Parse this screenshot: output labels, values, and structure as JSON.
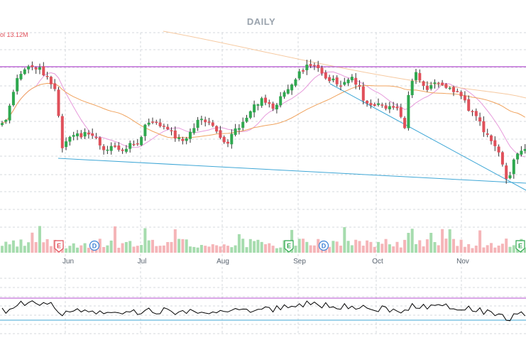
{
  "chart_data": {
    "type": "candlestick",
    "title": "DAILY",
    "volume_label": "ol 13.12M",
    "months": [
      "Jun",
      "Jul",
      "Aug",
      "Sep",
      "Oct",
      "Nov"
    ],
    "events": [
      "E",
      "D",
      "E",
      "D",
      "E"
    ],
    "colors": {
      "up": "#2fa84f",
      "down": "#e0505a",
      "vol_up": "#a6dcae",
      "vol_down": "#f5b5b8",
      "resistance": "#b44fcf",
      "trendline": "#3fa7d6",
      "ma_short": "#e79adb",
      "ma_mid": "#f0a35e",
      "ma_long": "#f6c9a0",
      "rsi": "#000000",
      "grid": "#d6d9dd"
    },
    "grid": true,
    "indicators": [
      "moving average (pink)",
      "moving average (orange)",
      "moving average (light orange)",
      "volume",
      "RSI"
    ]
  }
}
